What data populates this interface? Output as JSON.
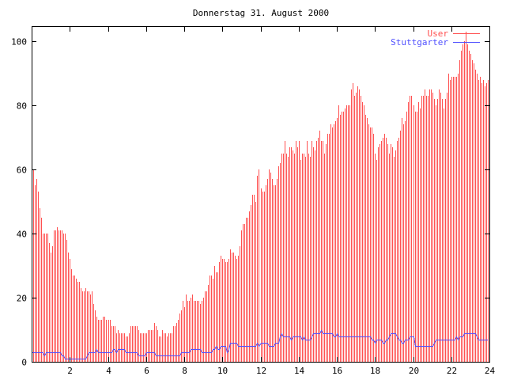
{
  "chart_data": {
    "type": "bar",
    "title": "Donnerstag 31. August 2000",
    "xlabel": "",
    "ylabel": "",
    "xlim": [
      0,
      24
    ],
    "ylim": [
      0,
      105
    ],
    "x_ticks": [
      2,
      4,
      6,
      8,
      10,
      12,
      14,
      16,
      18,
      20,
      22,
      24
    ],
    "y_ticks": [
      0,
      20,
      40,
      60,
      80,
      100
    ],
    "grid": false,
    "legend_position": "top-right",
    "samples_per_hour": 12,
    "series": [
      {
        "name": "User",
        "style": "impulses",
        "color": "#ff5050",
        "values": [
          62,
          60,
          55,
          57,
          53,
          48,
          45,
          40,
          40,
          40,
          40,
          37,
          34,
          36,
          41,
          41,
          42,
          41,
          41,
          41,
          40,
          40,
          38,
          34,
          32,
          29,
          27,
          27,
          26,
          25,
          25,
          23,
          22,
          22,
          23,
          22,
          22,
          21,
          22,
          18,
          16,
          14,
          13,
          13,
          13,
          14,
          14,
          13,
          13,
          13,
          11,
          11,
          11,
          9,
          10,
          9,
          9,
          9,
          9,
          8,
          8,
          9,
          11,
          11,
          11,
          11,
          11,
          10,
          9,
          9,
          9,
          9,
          9,
          10,
          10,
          10,
          10,
          12,
          11,
          10,
          8,
          8,
          10,
          9,
          9,
          8,
          9,
          9,
          9,
          11,
          11,
          12,
          13,
          15,
          16,
          19,
          17,
          21,
          19,
          19,
          20,
          21,
          19,
          19,
          19,
          19,
          18,
          19,
          20,
          22,
          22,
          24,
          27,
          27,
          26,
          30,
          28,
          28,
          31,
          33,
          32,
          32,
          31,
          31,
          32,
          35,
          34,
          34,
          33,
          32,
          33,
          36,
          41,
          43,
          43,
          45,
          45,
          47,
          49,
          52,
          52,
          50,
          58,
          60,
          54,
          53,
          53,
          55,
          57,
          60,
          59,
          57,
          55,
          55,
          57,
          61,
          62,
          65,
          65,
          69,
          65,
          64,
          67,
          67,
          66,
          65,
          69,
          67,
          69,
          63,
          65,
          65,
          64,
          69,
          65,
          64,
          69,
          67,
          66,
          69,
          70,
          72,
          69,
          69,
          65,
          68,
          71,
          71,
          74,
          73,
          74,
          75,
          76,
          80,
          77,
          78,
          78,
          79,
          80,
          80,
          80,
          85,
          87,
          83,
          84,
          86,
          85,
          83,
          81,
          80,
          77,
          76,
          74,
          73,
          73,
          71,
          65,
          63,
          67,
          68,
          69,
          70,
          71,
          70,
          68,
          65,
          68,
          67,
          64,
          66,
          69,
          70,
          72,
          76,
          74,
          75,
          78,
          81,
          83,
          83,
          80,
          78,
          78,
          81,
          79,
          83,
          83,
          85,
          83,
          83,
          85,
          85,
          84,
          82,
          80,
          82,
          85,
          84,
          82,
          79,
          82,
          84,
          90,
          88,
          89,
          89,
          89,
          89,
          90,
          94,
          97,
          99,
          100,
          103,
          99,
          97,
          96,
          94,
          93,
          91,
          90,
          88,
          89,
          87,
          88,
          86,
          87,
          88
        ]
      },
      {
        "name": "Stuttgarter",
        "style": "lines",
        "color": "#5050ff",
        "values": [
          3,
          3,
          3,
          3,
          3,
          3,
          3,
          3,
          2,
          3,
          3,
          3,
          3,
          3,
          3,
          3,
          3,
          3,
          3,
          2,
          2,
          1,
          1,
          1,
          1,
          1,
          1,
          1,
          1,
          1,
          1,
          1,
          1,
          1,
          1,
          2,
          3,
          3,
          3,
          3,
          3,
          4,
          3,
          3,
          3,
          3,
          3,
          3,
          3,
          3,
          3,
          4,
          4,
          3,
          4,
          4,
          4,
          4,
          4,
          3,
          3,
          3,
          3,
          3,
          3,
          3,
          3,
          2,
          2,
          2,
          2,
          2,
          3,
          3,
          3,
          3,
          3,
          3,
          2,
          2,
          2,
          2,
          2,
          2,
          2,
          2,
          2,
          2,
          2,
          2,
          2,
          2,
          2,
          2,
          3,
          3,
          3,
          3,
          3,
          3,
          4,
          4,
          4,
          4,
          4,
          4,
          4,
          3,
          3,
          3,
          3,
          3,
          3,
          3,
          4,
          4,
          5,
          4,
          4,
          5,
          5,
          5,
          5,
          3,
          4,
          6,
          6,
          6,
          6,
          6,
          5,
          5,
          5,
          5,
          5,
          5,
          5,
          5,
          5,
          5,
          5,
          5,
          6,
          5,
          6,
          6,
          6,
          6,
          6,
          5,
          5,
          5,
          5,
          6,
          6,
          6,
          8,
          9,
          8,
          8,
          8,
          8,
          8,
          7,
          8,
          8,
          8,
          8,
          8,
          8,
          7,
          8,
          7,
          7,
          7,
          7,
          8,
          9,
          9,
          9,
          9,
          9,
          10,
          9,
          9,
          9,
          9,
          9,
          9,
          9,
          8,
          8,
          9,
          8,
          8,
          8,
          8,
          8,
          8,
          8,
          8,
          8,
          8,
          8,
          8,
          8,
          8,
          8,
          8,
          8,
          8,
          8,
          8,
          8,
          7,
          7,
          6,
          7,
          7,
          7,
          7,
          6,
          6,
          7,
          7,
          8,
          9,
          9,
          9,
          9,
          8,
          7,
          7,
          6,
          6,
          7,
          7,
          7,
          8,
          8,
          8,
          5,
          5,
          5,
          5,
          5,
          5,
          5,
          5,
          5,
          5,
          5,
          5,
          6,
          7,
          7,
          7,
          7,
          7,
          7,
          7,
          7,
          7,
          7,
          7,
          7,
          7,
          8,
          7,
          8,
          8,
          8,
          9,
          9,
          9,
          9,
          9,
          9,
          9,
          9,
          8,
          7,
          7,
          7,
          7,
          7,
          7,
          7
        ]
      }
    ]
  }
}
